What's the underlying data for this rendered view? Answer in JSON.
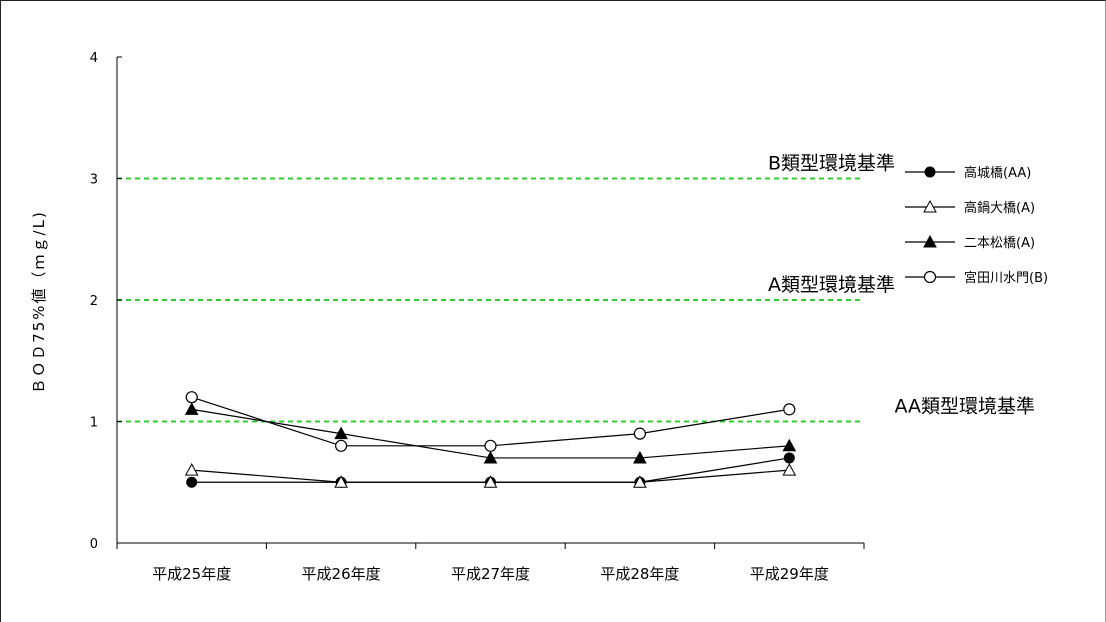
{
  "chart_data": {
    "type": "line",
    "title": "",
    "ylabel": "ＢＯＤ75%値（ｍｇ/L)",
    "xlabel": "",
    "ylim": [
      0,
      4
    ],
    "yticks": [
      0,
      1,
      2,
      3,
      4
    ],
    "categories": [
      "平成25年度",
      "平成26年度",
      "平成27年度",
      "平成28年度",
      "平成29年度"
    ],
    "series": [
      {
        "name": "高城橋(AA)",
        "marker": "filled-circle",
        "values": [
          0.5,
          0.5,
          0.5,
          0.5,
          0.7
        ]
      },
      {
        "name": "高鍋大橋(A)",
        "marker": "open-triangle",
        "values": [
          0.6,
          0.5,
          0.5,
          0.5,
          0.6
        ]
      },
      {
        "name": "二本松橋(A)",
        "marker": "filled-triangle",
        "values": [
          1.1,
          0.9,
          0.7,
          0.7,
          0.8
        ]
      },
      {
        "name": "宮田川水門(B)",
        "marker": "open-circle",
        "values": [
          1.2,
          0.8,
          0.8,
          0.9,
          1.1
        ]
      }
    ],
    "standards": [
      {
        "label": "B類型環境基準",
        "value": 3
      },
      {
        "label": "A類型環境基準",
        "value": 2
      },
      {
        "label": "AA類型環境基準",
        "value": 1
      }
    ],
    "standard_color": "#33cc33",
    "legend_position": "right",
    "grid": false
  }
}
